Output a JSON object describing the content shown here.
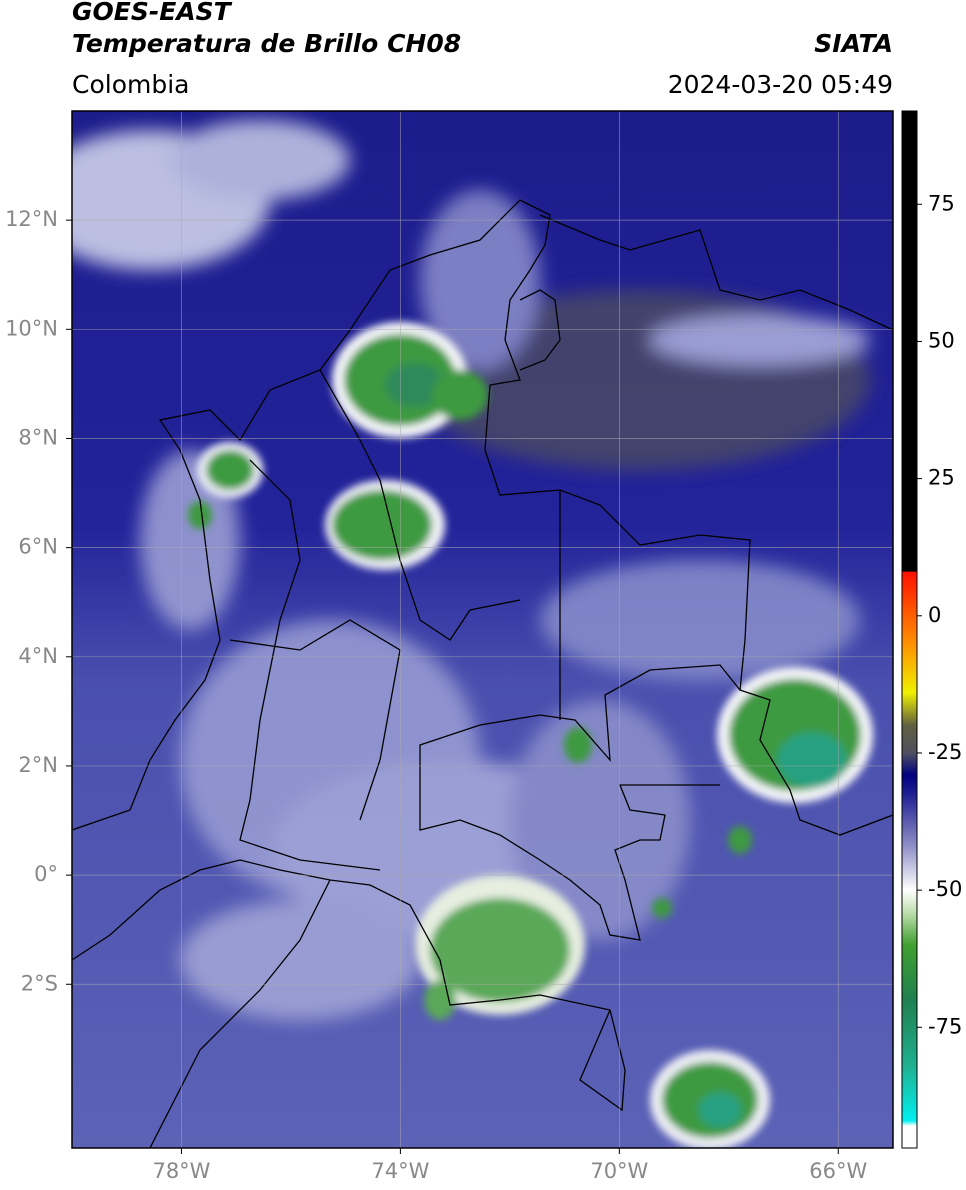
{
  "map": {
    "title": "GOES-EAST",
    "subtitle": "Temperatura de Brillo CH08",
    "source": "SIATA",
    "region": "Colombia",
    "datetime": "2024-03-20 05:49",
    "lonlim": [
      -80,
      -65
    ],
    "latlim": [
      -5,
      14
    ],
    "lat_ticks": [
      {
        "value": 12,
        "label": "12°N"
      },
      {
        "value": 10,
        "label": "10°N"
      },
      {
        "value": 8,
        "label": "8°N"
      },
      {
        "value": 6,
        "label": "6°N"
      },
      {
        "value": 4,
        "label": "4°N"
      },
      {
        "value": 2,
        "label": "2°N"
      },
      {
        "value": 0,
        "label": "0°"
      },
      {
        "value": -2,
        "label": "2°S"
      }
    ],
    "lon_ticks": [
      {
        "value": -78,
        "label": "78°W"
      },
      {
        "value": -74,
        "label": "74°W"
      },
      {
        "value": -70,
        "label": "70°W"
      },
      {
        "value": -66,
        "label": "66°W"
      }
    ],
    "colorbar": {
      "clim": [
        -97,
        92
      ],
      "ticks": [
        75,
        50,
        25,
        0,
        -25,
        -50,
        -75
      ],
      "stops": [
        {
          "value": -97,
          "color": "#ffffff"
        },
        {
          "value": -93,
          "color": "#ffffff"
        },
        {
          "value": -92,
          "color": "#00f0f0"
        },
        {
          "value": -82,
          "color": "#20b090"
        },
        {
          "value": -70,
          "color": "#208050"
        },
        {
          "value": -60,
          "color": "#40a030"
        },
        {
          "value": -54,
          "color": "#c0e0b0"
        },
        {
          "value": -50,
          "color": "#ffffff"
        },
        {
          "value": -42,
          "color": "#9090c8"
        },
        {
          "value": -32,
          "color": "#1a1a90"
        },
        {
          "value": -29,
          "color": "#000080"
        },
        {
          "value": -25,
          "color": "#505060"
        },
        {
          "value": -20,
          "color": "#606040"
        },
        {
          "value": -14,
          "color": "#f0f000"
        },
        {
          "value": -5,
          "color": "#ff9000"
        },
        {
          "value": 8,
          "color": "#ff1000"
        },
        {
          "value": 8.1,
          "color": "#000000"
        },
        {
          "value": 92,
          "color": "#000000"
        }
      ]
    }
  }
}
